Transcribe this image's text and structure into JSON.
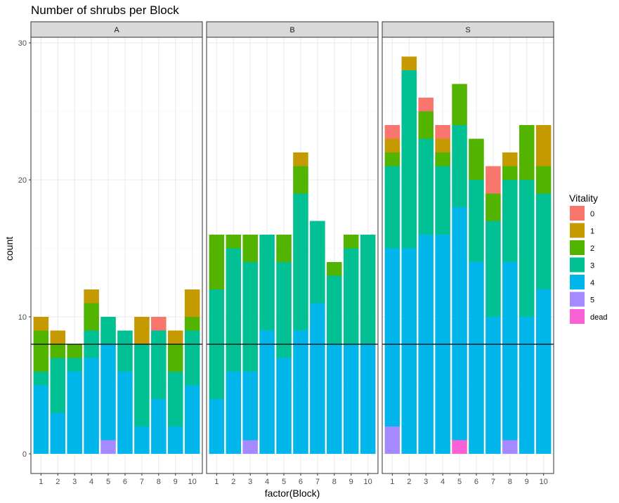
{
  "chart_data": {
    "type": "bar",
    "stacked": true,
    "title": "Number of shrubs per Block",
    "xlabel": "factor(Block)",
    "ylabel": "count",
    "ylim": [
      0,
      30
    ],
    "yticks": [
      0,
      10,
      20,
      30
    ],
    "reference_line_y": 8,
    "grid": true,
    "legend": {
      "title": "Vitality",
      "placement": "right",
      "entries": [
        {
          "key": "0",
          "label": "0",
          "color": "#F8766D"
        },
        {
          "key": "1",
          "label": "1",
          "color": "#C49A00"
        },
        {
          "key": "2",
          "label": "2",
          "color": "#53B400"
        },
        {
          "key": "3",
          "label": "3",
          "color": "#00C094"
        },
        {
          "key": "4",
          "label": "4",
          "color": "#00B6EB"
        },
        {
          "key": "5",
          "label": "5",
          "color": "#A58AFF"
        },
        {
          "key": "dead",
          "label": "dead",
          "color": "#FB61D7"
        }
      ]
    },
    "stack_order_bottom_to_top": [
      "dead",
      "5",
      "4",
      "3",
      "2",
      "1",
      "0"
    ],
    "categories": [
      "1",
      "2",
      "3",
      "4",
      "5",
      "6",
      "7",
      "8",
      "9",
      "10"
    ],
    "panels": [
      {
        "label": "A",
        "bars": [
          {
            "dead": 0,
            "5": 0,
            "4": 5,
            "3": 1,
            "2": 3,
            "1": 1,
            "0": 0
          },
          {
            "dead": 0,
            "5": 0,
            "4": 3,
            "3": 4,
            "2": 1,
            "1": 1,
            "0": 0
          },
          {
            "dead": 0,
            "5": 0,
            "4": 6,
            "3": 1,
            "2": 1,
            "1": 0,
            "0": 0
          },
          {
            "dead": 0,
            "5": 0,
            "4": 7,
            "3": 2,
            "2": 2,
            "1": 1,
            "0": 0
          },
          {
            "dead": 0,
            "5": 1,
            "4": 7,
            "3": 2,
            "2": 0,
            "1": 0,
            "0": 0
          },
          {
            "dead": 0,
            "5": 0,
            "4": 6,
            "3": 3,
            "2": 0,
            "1": 0,
            "0": 0
          },
          {
            "dead": 0,
            "5": 0,
            "4": 2,
            "3": 6,
            "2": 0,
            "1": 2,
            "0": 0
          },
          {
            "dead": 0,
            "5": 0,
            "4": 4,
            "3": 5,
            "2": 0,
            "1": 0,
            "0": 1
          },
          {
            "dead": 0,
            "5": 0,
            "4": 2,
            "3": 4,
            "2": 2,
            "1": 1,
            "0": 0
          },
          {
            "dead": 0,
            "5": 0,
            "4": 5,
            "3": 4,
            "2": 1,
            "1": 2,
            "0": 0
          }
        ]
      },
      {
        "label": "B",
        "bars": [
          {
            "dead": 0,
            "5": 0,
            "4": 4,
            "3": 8,
            "2": 4,
            "1": 0,
            "0": 0
          },
          {
            "dead": 0,
            "5": 0,
            "4": 6,
            "3": 9,
            "2": 1,
            "1": 0,
            "0": 0
          },
          {
            "dead": 0,
            "5": 1,
            "4": 5,
            "3": 8,
            "2": 2,
            "1": 0,
            "0": 0
          },
          {
            "dead": 0,
            "5": 0,
            "4": 9,
            "3": 7,
            "2": 0,
            "1": 0,
            "0": 0
          },
          {
            "dead": 0,
            "5": 0,
            "4": 7,
            "3": 7,
            "2": 2,
            "1": 0,
            "0": 0
          },
          {
            "dead": 0,
            "5": 0,
            "4": 9,
            "3": 10,
            "2": 2,
            "1": 1,
            "0": 0
          },
          {
            "dead": 0,
            "5": 0,
            "4": 11,
            "3": 6,
            "2": 0,
            "1": 0,
            "0": 0
          },
          {
            "dead": 0,
            "5": 0,
            "4": 8,
            "3": 5,
            "2": 1,
            "1": 0,
            "0": 0
          },
          {
            "dead": 0,
            "5": 0,
            "4": 8,
            "3": 7,
            "2": 1,
            "1": 0,
            "0": 0
          },
          {
            "dead": 0,
            "5": 0,
            "4": 8,
            "3": 8,
            "2": 0,
            "1": 0,
            "0": 0
          }
        ]
      },
      {
        "label": "S",
        "bars": [
          {
            "dead": 0,
            "5": 2,
            "4": 13,
            "3": 6,
            "2": 1,
            "1": 1,
            "0": 1
          },
          {
            "dead": 0,
            "5": 0,
            "4": 15,
            "3": 13,
            "2": 0,
            "1": 1,
            "0": 0
          },
          {
            "dead": 0,
            "5": 0,
            "4": 16,
            "3": 7,
            "2": 2,
            "1": 0,
            "0": 1
          },
          {
            "dead": 0,
            "5": 0,
            "4": 16,
            "3": 5,
            "2": 1,
            "1": 1,
            "0": 1
          },
          {
            "dead": 1,
            "5": 0,
            "4": 17,
            "3": 6,
            "2": 3,
            "1": 0,
            "0": 0
          },
          {
            "dead": 0,
            "5": 0,
            "4": 14,
            "3": 6,
            "2": 3,
            "1": 0,
            "0": 0
          },
          {
            "dead": 0,
            "5": 0,
            "4": 10,
            "3": 7,
            "2": 2,
            "1": 0,
            "0": 2
          },
          {
            "dead": 0,
            "5": 1,
            "4": 13,
            "3": 6,
            "2": 1,
            "1": 1,
            "0": 0
          },
          {
            "dead": 0,
            "5": 0,
            "4": 10,
            "3": 10,
            "2": 4,
            "1": 0,
            "0": 0
          },
          {
            "dead": 0,
            "5": 0,
            "4": 12,
            "3": 7,
            "2": 2,
            "1": 3,
            "0": 0
          }
        ]
      }
    ]
  }
}
